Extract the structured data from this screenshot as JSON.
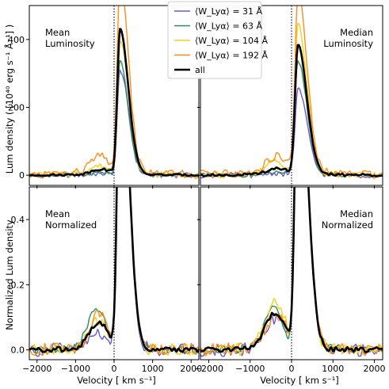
{
  "chart_data": {
    "type": "line",
    "xlabel": "Velocity [ km s⁻¹]",
    "ylabel_top": "Lum density ( [10⁴⁰ erg s⁻¹ Å⁻¹] )",
    "ylabel_bottom": "Normalized Lum density",
    "xlim": [
      -2200,
      2200
    ],
    "xticks": [
      -2000,
      -1000,
      0,
      1000,
      2000
    ],
    "xtick_labels": [
      "−2000",
      "−1000",
      "0",
      "1000",
      "2000"
    ],
    "vline_x": 0,
    "legend": {
      "placement": "top-center",
      "entries": [
        {
          "label": "⟨W_Lyα⟩ = 31 Å",
          "color": "#6a5acd"
        },
        {
          "label": "⟨W_Lyα⟩ = 63 Å",
          "color": "#2e8b57"
        },
        {
          "label": "⟨W_Lyα⟩ = 104 Å",
          "color": "#f2d21b"
        },
        {
          "label": "⟨W_Lyα⟩ = 192 Å",
          "color": "#ff8c1a"
        },
        {
          "label": "all",
          "color": "#000000"
        }
      ]
    },
    "panels": [
      {
        "id": "mean-luminosity",
        "title": [
          "Mean",
          "Luminosity"
        ],
        "title_side": "left",
        "ylim": [
          -30,
          500
        ],
        "yticks": [
          0,
          200,
          400
        ],
        "series": [
          {
            "name": "⟨W_Lyα⟩ = 31 Å",
            "color": "#6a5acd",
            "amp": 310,
            "blue": 5,
            "blueMu": -380,
            "tail": 0,
            "wig": 8
          },
          {
            "name": "⟨W_Lyα⟩ = 63 Å",
            "color": "#2e8b57",
            "amp": 335,
            "blue": 8,
            "blueMu": -350,
            "tail": 0,
            "wig": 6
          },
          {
            "name": "⟨W_Lyα⟩ = 104 Å",
            "color": "#f2d21b",
            "amp": 395,
            "blue": 22,
            "blueMu": -400,
            "tail": 8,
            "wig": 8
          },
          {
            "name": "⟨W_Lyα⟩ = 192 Å",
            "color": "#ff8c1a",
            "amp": 560,
            "blue": 45,
            "blueMu": -380,
            "tail": 15,
            "wig": 12
          },
          {
            "name": "all",
            "color": "#000000",
            "amp": 425,
            "blue": 15,
            "blueMu": -350,
            "tail": 4,
            "wig": 3
          }
        ]
      },
      {
        "id": "median-luminosity",
        "title": [
          "Median",
          "Luminosity"
        ],
        "title_side": "right",
        "ylim": [
          -30,
          500
        ],
        "yticks": [
          0,
          200,
          400
        ],
        "series": [
          {
            "name": "⟨W_Lyα⟩ = 31 Å",
            "color": "#6a5acd",
            "amp": 255,
            "blue": 6,
            "blueMu": -380,
            "tail": 0,
            "wig": 8
          },
          {
            "name": "⟨W_Lyα⟩ = 63 Å",
            "color": "#2e8b57",
            "amp": 335,
            "blue": 8,
            "blueMu": -350,
            "tail": 0,
            "wig": 6
          },
          {
            "name": "⟨W_Lyα⟩ = 104 Å",
            "color": "#f2d21b",
            "amp": 435,
            "blue": 35,
            "blueMu": -420,
            "tail": 8,
            "wig": 10
          },
          {
            "name": "⟨W_Lyα⟩ = 192 Å",
            "color": "#ff8c1a",
            "amp": 520,
            "blue": 45,
            "blueMu": -380,
            "tail": 15,
            "wig": 12
          },
          {
            "name": "all",
            "color": "#000000",
            "amp": 380,
            "blue": 18,
            "blueMu": -350,
            "tail": 4,
            "wig": 4
          }
        ]
      },
      {
        "id": "mean-normalized",
        "title": [
          "Mean",
          "Normalized"
        ],
        "title_side": "left",
        "ylim": [
          -0.03,
          0.5
        ],
        "yticks": [
          0.0,
          0.2,
          0.4
        ],
        "series": [
          {
            "name": "⟨W_Lyα⟩ = 31 Å",
            "color": "#6a5acd",
            "amp": 1.0,
            "blue": 0.05,
            "blueMu": -380,
            "tail": 0.005,
            "wig": 0.022
          },
          {
            "name": "⟨W_Lyα⟩ = 63 Å",
            "color": "#2e8b57",
            "amp": 1.0,
            "blue": 0.12,
            "blueMu": -450,
            "tail": 0.005,
            "wig": 0.012
          },
          {
            "name": "⟨W_Lyα⟩ = 104 Å",
            "color": "#f2d21b",
            "amp": 1.0,
            "blue": 0.09,
            "blueMu": -400,
            "tail": 0.004,
            "wig": 0.02
          },
          {
            "name": "⟨W_Lyα⟩ = 192 Å",
            "color": "#ff8c1a",
            "amp": 1.0,
            "blue": 0.1,
            "blueMu": -380,
            "tail": 0.01,
            "wig": 0.02
          },
          {
            "name": "all",
            "color": "#000000",
            "amp": 1.0,
            "blue": 0.08,
            "blueMu": -400,
            "tail": 0.005,
            "wig": 0.008
          }
        ]
      },
      {
        "id": "median-normalized",
        "title": [
          "Median",
          "Normalized"
        ],
        "title_side": "right",
        "ylim": [
          -0.03,
          0.5
        ],
        "yticks": [
          0.0,
          0.2,
          0.4
        ],
        "series": [
          {
            "name": "⟨W_Lyα⟩ = 31 Å",
            "color": "#6a5acd",
            "amp": 1.0,
            "blue": 0.09,
            "blueMu": -400,
            "tail": 0.005,
            "wig": 0.022
          },
          {
            "name": "⟨W_Lyα⟩ = 63 Å",
            "color": "#2e8b57",
            "amp": 1.0,
            "blue": 0.12,
            "blueMu": -450,
            "tail": 0.005,
            "wig": 0.014
          },
          {
            "name": "⟨W_Lyα⟩ = 104 Å",
            "color": "#f2d21b",
            "amp": 1.0,
            "blue": 0.14,
            "blueMu": -400,
            "tail": 0.005,
            "wig": 0.02
          },
          {
            "name": "⟨W_Lyα⟩ = 192 Å",
            "color": "#ff8c1a",
            "amp": 1.0,
            "blue": 0.1,
            "blueMu": -380,
            "tail": 0.01,
            "wig": 0.02
          },
          {
            "name": "all",
            "color": "#000000",
            "amp": 1.0,
            "blue": 0.11,
            "blueMu": -400,
            "tail": 0.005,
            "wig": 0.008
          }
        ]
      }
    ]
  }
}
